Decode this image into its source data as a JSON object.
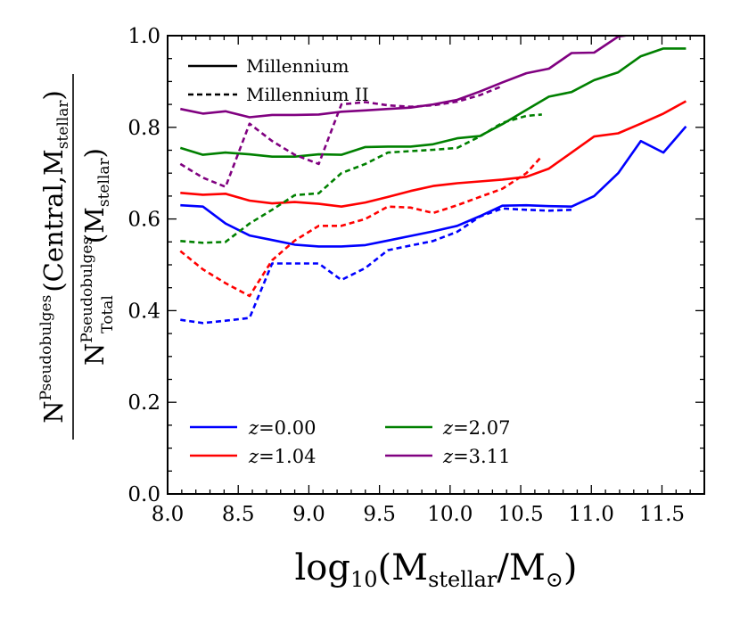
{
  "chart_data": {
    "type": "line",
    "xlabel": "log10(Mstellar/M⊙)",
    "xlabel_parts": {
      "log": "log",
      "log_sub": "10",
      "open": "(M",
      "m_sub": "stellar",
      "mid": "/M",
      "sun": "⊙",
      "close": ")"
    },
    "ylabel_parts": {
      "num_N": "N",
      "num_sup": "Pseudobulges",
      "num_args": "(Central,M",
      "num_args_sub": "stellar",
      "num_close": ")",
      "den_N": "N",
      "den_sup": "Pseudobulges",
      "den_sub": "Total",
      "den_args": "(M",
      "den_args_sub": "stellar",
      "den_close": ")"
    },
    "xlim": [
      8.0,
      11.8
    ],
    "ylim": [
      0.0,
      1.0
    ],
    "xticks": [
      "8.0",
      "8.5",
      "9.0",
      "9.5",
      "10.0",
      "10.5",
      "11.0",
      "11.5"
    ],
    "yticks": [
      "0.0",
      "0.2",
      "0.4",
      "0.6",
      "0.8",
      "1.0"
    ],
    "grid": false,
    "style_legend": {
      "position": "top-left",
      "entries": [
        {
          "label": "Millennium",
          "linestyle": "solid"
        },
        {
          "label": "Millennium II",
          "linestyle": "dashed"
        }
      ]
    },
    "color_legend": {
      "position": "bottom-left",
      "entries": [
        {
          "symbol": "z",
          "eq": "=0.00",
          "color": "#0000ff"
        },
        {
          "symbol": "z",
          "eq": "=1.04",
          "color": "#ff0000"
        },
        {
          "symbol": "z",
          "eq": "=2.07",
          "color": "#008000"
        },
        {
          "symbol": "z",
          "eq": "=3.11",
          "color": "#800080"
        }
      ]
    },
    "series": [
      {
        "name": "Millennium z=0.00",
        "color": "#0000ff",
        "linestyle": "solid",
        "x": [
          8.09,
          8.25,
          8.41,
          8.58,
          8.74,
          8.9,
          9.07,
          9.23,
          9.4,
          9.56,
          9.72,
          9.88,
          10.05,
          10.21,
          10.37,
          10.54,
          10.7,
          10.86,
          11.02,
          11.19,
          11.35,
          11.51,
          11.67
        ],
        "y": [
          0.63,
          0.627,
          0.59,
          0.564,
          0.554,
          0.544,
          0.54,
          0.54,
          0.543,
          0.553,
          0.563,
          0.573,
          0.585,
          0.606,
          0.629,
          0.63,
          0.628,
          0.627,
          0.65,
          0.7,
          0.77,
          0.745,
          0.802
        ]
      },
      {
        "name": "Millennium z=1.04",
        "color": "#ff0000",
        "linestyle": "solid",
        "x": [
          8.09,
          8.25,
          8.41,
          8.58,
          8.74,
          8.9,
          9.07,
          9.23,
          9.4,
          9.56,
          9.72,
          9.88,
          10.05,
          10.21,
          10.37,
          10.54,
          10.7,
          10.86,
          11.02,
          11.19,
          11.35,
          11.51,
          11.67
        ],
        "y": [
          0.657,
          0.653,
          0.655,
          0.64,
          0.634,
          0.637,
          0.633,
          0.627,
          0.636,
          0.648,
          0.661,
          0.672,
          0.678,
          0.682,
          0.686,
          0.692,
          0.71,
          0.745,
          0.78,
          0.787,
          0.808,
          0.83,
          0.857
        ]
      },
      {
        "name": "Millennium z=2.07",
        "color": "#008000",
        "linestyle": "solid",
        "x": [
          8.09,
          8.25,
          8.41,
          8.58,
          8.74,
          8.9,
          9.07,
          9.23,
          9.4,
          9.56,
          9.72,
          9.88,
          10.05,
          10.21,
          10.37,
          10.54,
          10.7,
          10.86,
          11.02,
          11.19,
          11.35,
          11.51,
          11.67
        ],
        "y": [
          0.755,
          0.74,
          0.745,
          0.741,
          0.736,
          0.736,
          0.741,
          0.74,
          0.757,
          0.758,
          0.758,
          0.763,
          0.776,
          0.781,
          0.807,
          0.838,
          0.867,
          0.877,
          0.903,
          0.92,
          0.955,
          0.972,
          0.972
        ]
      },
      {
        "name": "Millennium z=3.11",
        "color": "#800080",
        "linestyle": "solid",
        "x": [
          8.09,
          8.25,
          8.41,
          8.58,
          8.74,
          8.9,
          9.07,
          9.23,
          9.4,
          9.56,
          9.72,
          9.88,
          10.05,
          10.21,
          10.37,
          10.54,
          10.7,
          10.86,
          11.02,
          11.19,
          11.35,
          11.51
        ],
        "y": [
          0.84,
          0.83,
          0.835,
          0.822,
          0.827,
          0.827,
          0.828,
          0.834,
          0.837,
          0.84,
          0.843,
          0.85,
          0.86,
          0.878,
          0.898,
          0.918,
          0.928,
          0.962,
          0.963,
          0.998,
          1.005,
          1.01
        ]
      },
      {
        "name": "Millennium II z=0.00",
        "color": "#0000ff",
        "linestyle": "dashed",
        "x": [
          8.09,
          8.25,
          8.41,
          8.58,
          8.74,
          8.9,
          9.07,
          9.23,
          9.4,
          9.56,
          9.72,
          9.88,
          10.05,
          10.21,
          10.37,
          10.54,
          10.7,
          10.86
        ],
        "y": [
          0.38,
          0.373,
          0.378,
          0.384,
          0.503,
          0.503,
          0.503,
          0.467,
          0.493,
          0.532,
          0.542,
          0.552,
          0.572,
          0.605,
          0.623,
          0.62,
          0.618,
          0.62
        ]
      },
      {
        "name": "Millennium II z=1.04",
        "color": "#ff0000",
        "linestyle": "dashed",
        "x": [
          8.09,
          8.25,
          8.41,
          8.58,
          8.74,
          8.9,
          9.07,
          9.23,
          9.4,
          9.56,
          9.72,
          9.88,
          10.05,
          10.21,
          10.37,
          10.54,
          10.65
        ],
        "y": [
          0.53,
          0.49,
          0.46,
          0.432,
          0.51,
          0.553,
          0.585,
          0.585,
          0.6,
          0.627,
          0.625,
          0.613,
          0.63,
          0.648,
          0.666,
          0.7,
          0.737
        ]
      },
      {
        "name": "Millennium II z=2.07",
        "color": "#008000",
        "linestyle": "dashed",
        "x": [
          8.09,
          8.25,
          8.41,
          8.58,
          8.74,
          8.9,
          9.07,
          9.23,
          9.4,
          9.56,
          9.72,
          9.88,
          10.05,
          10.21,
          10.37,
          10.54,
          10.65
        ],
        "y": [
          0.552,
          0.548,
          0.55,
          0.59,
          0.62,
          0.652,
          0.656,
          0.7,
          0.72,
          0.745,
          0.748,
          0.751,
          0.755,
          0.78,
          0.81,
          0.825,
          0.828
        ]
      },
      {
        "name": "Millennium II z=3.11",
        "color": "#800080",
        "linestyle": "dashed",
        "x": [
          8.09,
          8.25,
          8.41,
          8.58,
          8.74,
          8.9,
          9.07,
          9.23,
          9.4,
          9.56,
          9.72,
          9.88,
          10.05,
          10.21,
          10.37
        ],
        "y": [
          0.72,
          0.69,
          0.67,
          0.808,
          0.77,
          0.74,
          0.72,
          0.85,
          0.855,
          0.848,
          0.845,
          0.848,
          0.856,
          0.87,
          0.89
        ]
      }
    ]
  }
}
